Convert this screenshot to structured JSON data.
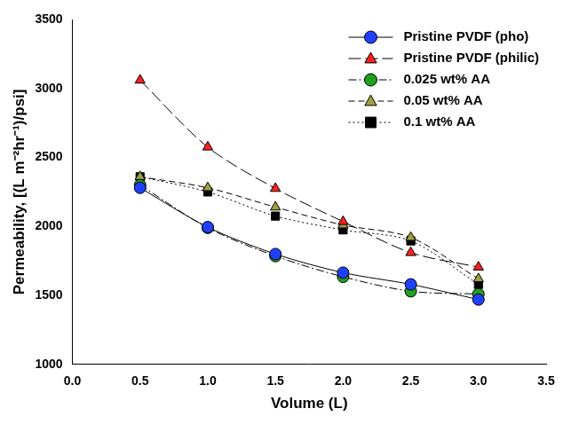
{
  "chart_data": {
    "type": "line",
    "x_label": "Volume (L)",
    "y_label": "Permeability, [(L m⁻²hr⁻¹)/psi]",
    "x": [
      0.5,
      1.0,
      1.5,
      2.0,
      2.5,
      3.0
    ],
    "series": [
      {
        "name": "Pristine PVDF (pho)",
        "color": "#2040ff",
        "marker": "circle",
        "line_style": "solid",
        "values": [
          2280,
          1995,
          1800,
          1665,
          1580,
          1470
        ]
      },
      {
        "name": "Pristine PVDF (philic)",
        "color": "#ff2020",
        "marker": "triangle",
        "line_style": "longdash",
        "values": [
          3060,
          2575,
          2275,
          2035,
          1810,
          1705
        ]
      },
      {
        "name": "0.025 wt% AA",
        "color": "#20a020",
        "marker": "circle",
        "line_style": "dashdot",
        "values": [
          2300,
          1990,
          1785,
          1635,
          1530,
          1510
        ]
      },
      {
        "name": "0.05 wt% AA",
        "color": "#a0a040",
        "marker": "triangle",
        "line_style": "dashed",
        "values": [
          2360,
          2280,
          2140,
          2010,
          1920,
          1620
        ]
      },
      {
        "name": "0.1 wt% AA",
        "color": "#000000",
        "marker": "square",
        "line_style": "dotted",
        "values": [
          2360,
          2250,
          2075,
          1975,
          1895,
          1580
        ]
      }
    ],
    "xlim": [
      0,
      3.5
    ],
    "xticks": [
      {
        "value": 0,
        "label": "0.0"
      },
      0.5,
      {
        "value": 1,
        "label": "1.0"
      },
      1.5,
      {
        "value": 2,
        "label": "2.0"
      },
      2.5,
      {
        "value": 3,
        "label": "3.0"
      },
      3.5
    ],
    "ylim": [
      1000,
      3500
    ],
    "yticks": [
      1000,
      1500,
      2000,
      2500,
      3000,
      3500
    ],
    "grid": false,
    "legend": "top-right"
  }
}
